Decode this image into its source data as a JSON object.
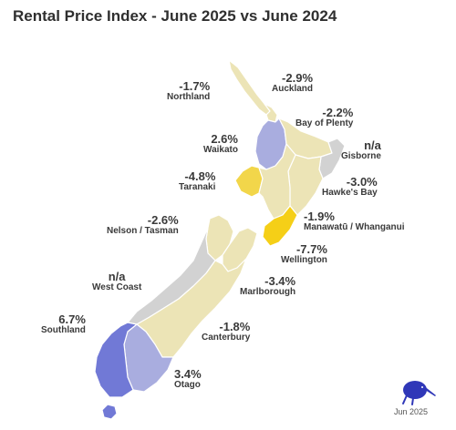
{
  "title": "Rental Price Index - June 2025 vs June 2024",
  "footer_date": "Jun 2025",
  "logo_icon": "kiwi-bird-icon",
  "colors": {
    "increase_strong": "#7179d6",
    "increase_mid": "#a9addf",
    "small_change": "#ece4b6",
    "large_decrease": "#f2d64a",
    "largest_decrease": "#f5cf17",
    "no_data": "#d2d2d2"
  },
  "regions": [
    {
      "name": "Northland",
      "value": "-1.7%"
    },
    {
      "name": "Auckland",
      "value": "-2.9%"
    },
    {
      "name": "Bay of Plenty",
      "value": "-2.2%"
    },
    {
      "name": "Waikato",
      "value": "2.6%"
    },
    {
      "name": "Gisborne",
      "value": "n/a"
    },
    {
      "name": "Taranaki",
      "value": "-4.8%"
    },
    {
      "name": "Hawke's Bay",
      "value": "-3.0%"
    },
    {
      "name": "Nelson / Tasman",
      "value": "-2.6%"
    },
    {
      "name": "Manawatū / Whanganui",
      "value": "-1.9%"
    },
    {
      "name": "Wellington",
      "value": "-7.7%"
    },
    {
      "name": "West Coast",
      "value": "n/a"
    },
    {
      "name": "Marlborough",
      "value": "-3.4%"
    },
    {
      "name": "Southland",
      "value": "6.7%"
    },
    {
      "name": "Canterbury",
      "value": "-1.8%"
    },
    {
      "name": "Otago",
      "value": "3.4%"
    }
  ]
}
